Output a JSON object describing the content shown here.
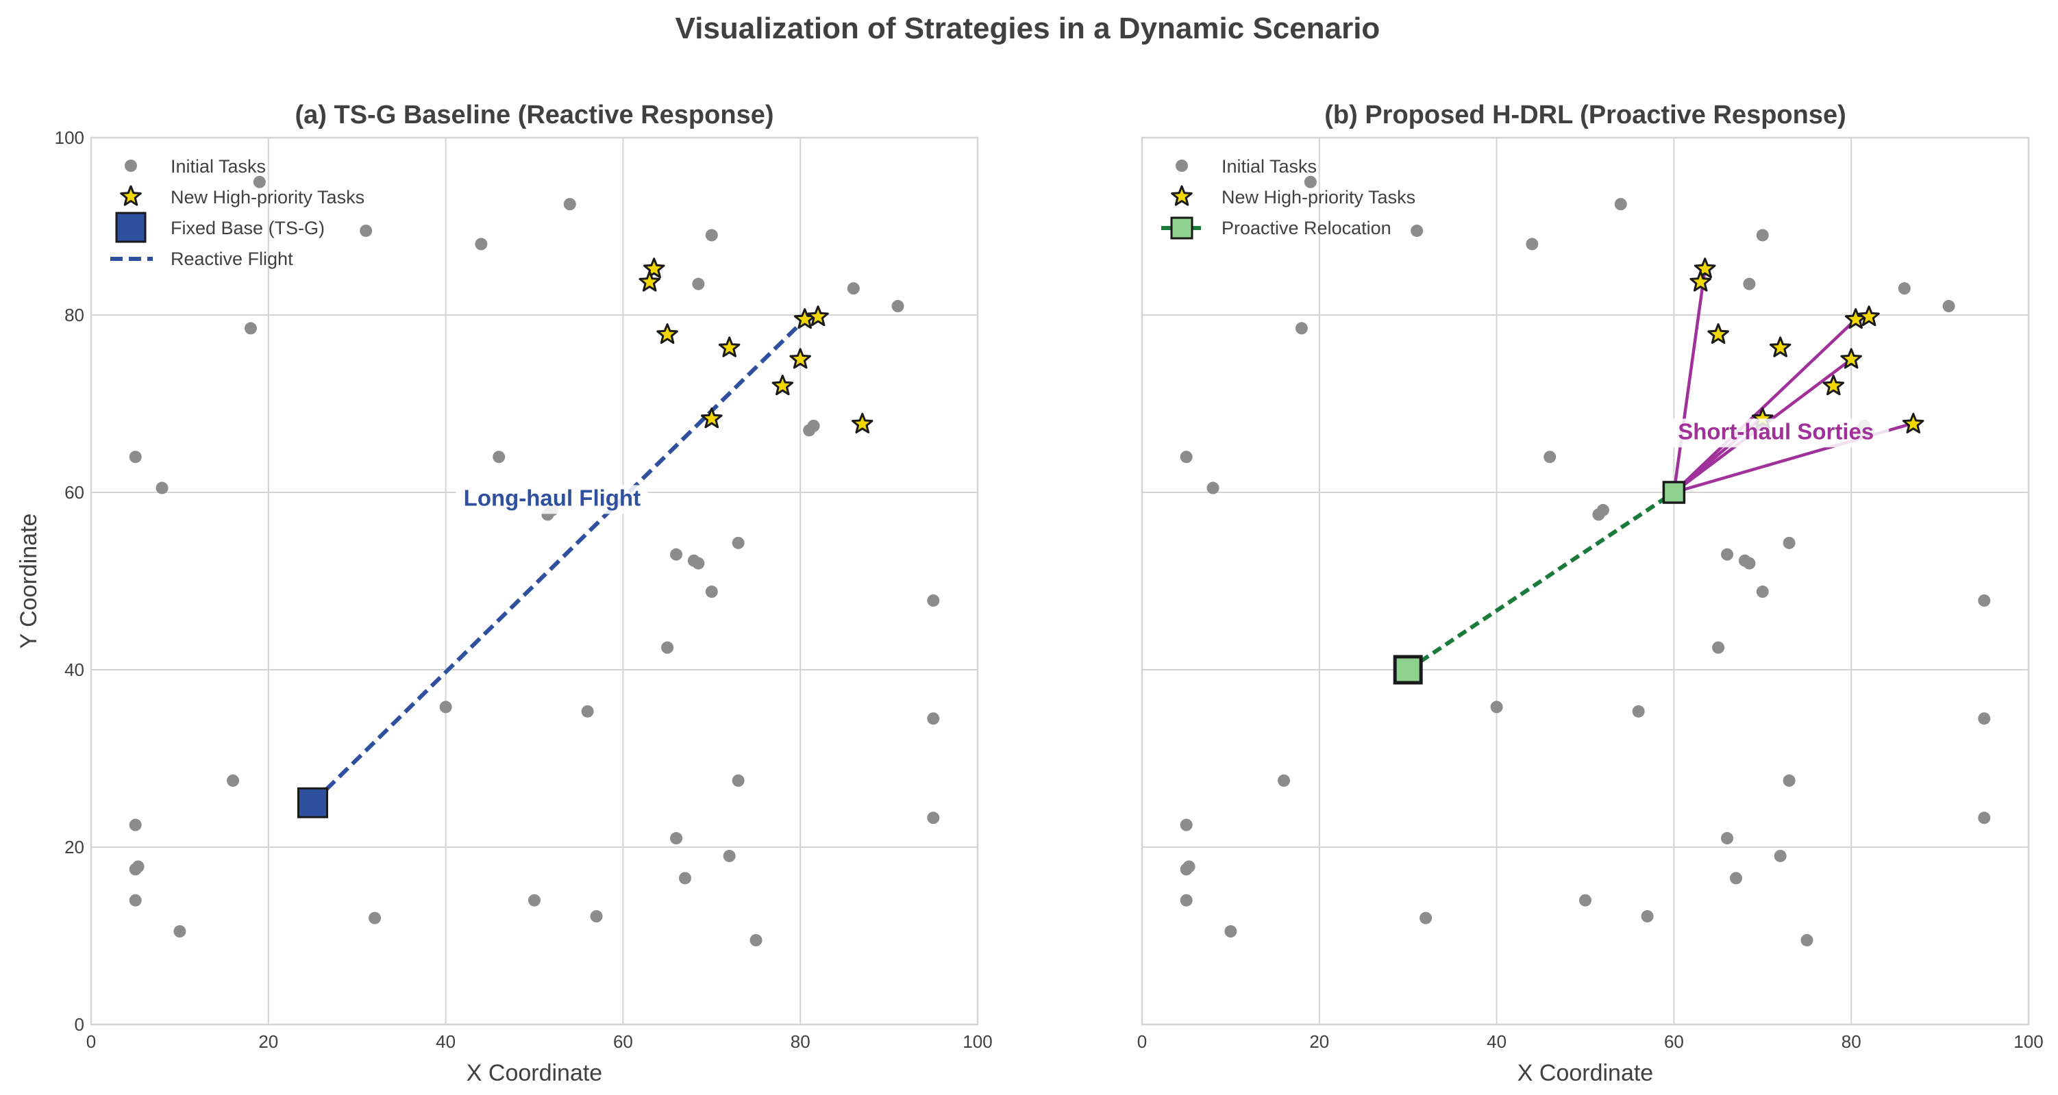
{
  "figure_title": "Visualization of Strategies in a Dynamic Scenario",
  "colors": {
    "task": "#8c8c8c",
    "star_fill": "#f2d600",
    "star_edge": "#1a1a1a",
    "blue": "#2f4f9f",
    "green_fill": "#8fd18f",
    "green_line": "#1a7a3a",
    "purple": "#a0309a",
    "grid": "#d4d4d4",
    "text": "#404040"
  },
  "chart_data": [
    {
      "type": "scatter",
      "title": "(a) TS-G Baseline (Reactive Response)",
      "xlabel": "X Coordinate",
      "ylabel": "Y Coordinate",
      "xlim": [
        0,
        100
      ],
      "ylim": [
        0,
        100
      ],
      "xticks": [
        "0",
        "20",
        "40",
        "60",
        "80",
        "100"
      ],
      "yticks": [
        "0",
        "20",
        "40",
        "60",
        "80",
        "100"
      ],
      "grid": true,
      "legend": [
        {
          "label": "Initial Tasks",
          "marker": "dot"
        },
        {
          "label": "New High-priority Tasks",
          "marker": "star"
        },
        {
          "label": "Fixed Base (TS-G)",
          "marker": "blue-square"
        },
        {
          "label": "Reactive Flight",
          "marker": "blue-dash"
        }
      ],
      "base": {
        "x": 25,
        "y": 25
      },
      "flight_target": {
        "x": 80.5,
        "y": 79.5
      },
      "annotation": {
        "text": "Long-haul Flight",
        "x": 52,
        "y": 58.5
      }
    },
    {
      "type": "scatter",
      "title": "(b) Proposed H-DRL (Proactive Response)",
      "xlabel": "X Coordinate",
      "ylabel": "",
      "xlim": [
        0,
        100
      ],
      "ylim": [
        0,
        100
      ],
      "xticks": [
        "0",
        "20",
        "40",
        "60",
        "80",
        "100"
      ],
      "yticks": [],
      "grid": true,
      "legend": [
        {
          "label": "Initial Tasks",
          "marker": "dot"
        },
        {
          "label": "New High-priority Tasks",
          "marker": "star"
        },
        {
          "label": "Proactive Relocation",
          "marker": "green-square-dash"
        }
      ],
      "relocation_from": {
        "x": 30,
        "y": 40
      },
      "relocation_to": {
        "x": 60,
        "y": 60
      },
      "sorties": [
        {
          "x": 63.5,
          "y": 85.2
        },
        {
          "x": 80.5,
          "y": 79.5
        },
        {
          "x": 80,
          "y": 75
        },
        {
          "x": 70,
          "y": 68.5
        },
        {
          "x": 87,
          "y": 67.8
        }
      ],
      "annotation": {
        "text": "Short-haul Sorties",
        "x": 71.5,
        "y": 66
      }
    }
  ],
  "initial_tasks": [
    {
      "x": 19,
      "y": 95
    },
    {
      "x": 31,
      "y": 89.5
    },
    {
      "x": 44,
      "y": 88
    },
    {
      "x": 54,
      "y": 92.5
    },
    {
      "x": 70,
      "y": 89
    },
    {
      "x": 68.5,
      "y": 83.5
    },
    {
      "x": 86,
      "y": 83
    },
    {
      "x": 91,
      "y": 81
    },
    {
      "x": 18,
      "y": 78.5
    },
    {
      "x": 5,
      "y": 64
    },
    {
      "x": 46,
      "y": 64
    },
    {
      "x": 8,
      "y": 60.5
    },
    {
      "x": 81,
      "y": 67
    },
    {
      "x": 51.5,
      "y": 57.5
    },
    {
      "x": 52,
      "y": 58
    },
    {
      "x": 66,
      "y": 53
    },
    {
      "x": 68,
      "y": 52.3
    },
    {
      "x": 68.5,
      "y": 52
    },
    {
      "x": 73,
      "y": 54.3
    },
    {
      "x": 70,
      "y": 48.8
    },
    {
      "x": 95,
      "y": 47.8
    },
    {
      "x": 65,
      "y": 42.5
    },
    {
      "x": 40,
      "y": 35.8
    },
    {
      "x": 56,
      "y": 35.3
    },
    {
      "x": 95,
      "y": 34.5
    },
    {
      "x": 16,
      "y": 27.5
    },
    {
      "x": 73,
      "y": 27.5
    },
    {
      "x": 5,
      "y": 22.5
    },
    {
      "x": 95,
      "y": 23.3
    },
    {
      "x": 66,
      "y": 21
    },
    {
      "x": 72,
      "y": 19
    },
    {
      "x": 5,
      "y": 17.5
    },
    {
      "x": 5.3,
      "y": 17.8
    },
    {
      "x": 67,
      "y": 16.5
    },
    {
      "x": 5,
      "y": 14
    },
    {
      "x": 50,
      "y": 14
    },
    {
      "x": 32,
      "y": 12
    },
    {
      "x": 57,
      "y": 12.2
    },
    {
      "x": 10,
      "y": 10.5
    },
    {
      "x": 75,
      "y": 9.5
    },
    {
      "x": 81.5,
      "y": 67.5
    }
  ],
  "new_tasks": [
    {
      "x": 63.5,
      "y": 85.2
    },
    {
      "x": 63,
      "y": 83.7
    },
    {
      "x": 65,
      "y": 77.8
    },
    {
      "x": 72,
      "y": 76.3
    },
    {
      "x": 80.5,
      "y": 79.5
    },
    {
      "x": 82,
      "y": 79.8
    },
    {
      "x": 80,
      "y": 75
    },
    {
      "x": 78,
      "y": 72
    },
    {
      "x": 70,
      "y": 68.3
    },
    {
      "x": 87,
      "y": 67.7
    }
  ]
}
